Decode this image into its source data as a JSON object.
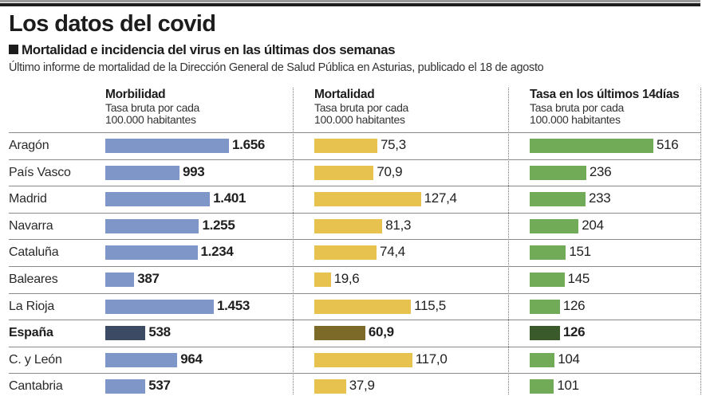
{
  "header": {
    "title": "Los datos del covid",
    "subtitle": "Mortalidad e incidencia del virus en las últimas dos semanas",
    "source": "Último informe de mortalidad de la Dirección General de Salud Pública en Asturias, publicado el 18 de agosto"
  },
  "colors": {
    "morbilidad": "#7e97c8",
    "morbilidad_highlight": "#3c4a63",
    "mortalidad": "#e8c24f",
    "mortalidad_highlight": "#7c6a28",
    "tasa14": "#72ab58",
    "tasa14_highlight": "#3b5a2c"
  },
  "chart_data": {
    "type": "bar",
    "orientation": "horizontal",
    "title": "Mortalidad e incidencia del virus en las últimas dos semanas",
    "categories": [
      "Aragón",
      "País Vasco",
      "Madrid",
      "Navarra",
      "Cataluña",
      "Baleares",
      "La Rioja",
      "España",
      "C. y León",
      "Cantabria"
    ],
    "highlight": "España",
    "series": [
      {
        "name": "Morbilidad",
        "subtitle_line1": "Tasa bruta por cada",
        "subtitle_line2": "100.000 habitantes",
        "values": [
          1656,
          993,
          1401,
          1255,
          1234,
          387,
          1453,
          538,
          964,
          537
        ],
        "labels": [
          "1.656",
          "993",
          "1.401",
          "1.255",
          "1.234",
          "387",
          "1.453",
          "538",
          "964",
          "537"
        ]
      },
      {
        "name": "Mortalidad",
        "subtitle_line1": "Tasa bruta por cada",
        "subtitle_line2": "100.000 habitantes",
        "values": [
          75.3,
          70.9,
          127.4,
          81.3,
          74.4,
          19.6,
          115.5,
          60.9,
          117.0,
          37.9
        ],
        "labels": [
          "75,3",
          "70,9",
          "127,4",
          "81,3",
          "74,4",
          "19,6",
          "115,5",
          "60,9",
          "117,0",
          "37,9"
        ]
      },
      {
        "name": "Tasa en los últimos 14días",
        "subtitle_line1": "Tasa bruta por cada",
        "subtitle_line2": "100.000 habitantes",
        "values": [
          516,
          236,
          233,
          204,
          151,
          145,
          126,
          126,
          104,
          101
        ],
        "labels": [
          "516",
          "236",
          "233",
          "204",
          "151",
          "145",
          "126",
          "126",
          "104",
          "101"
        ]
      }
    ]
  }
}
